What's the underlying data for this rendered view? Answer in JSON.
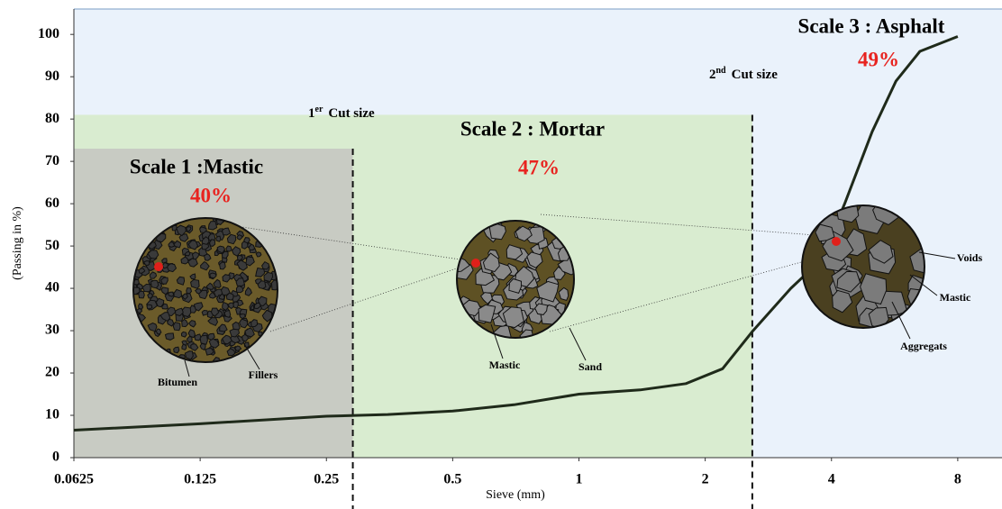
{
  "chart_data": {
    "type": "line",
    "x_label": "Sieve (mm)",
    "y_label": "(Passing in %)",
    "log_x": true,
    "xlim": [
      0.0625,
      10.2
    ],
    "xticks": [
      0.0625,
      0.125,
      0.25,
      0.5,
      1,
      2,
      4,
      8
    ],
    "ylim": [
      0,
      106
    ],
    "yticks": [
      0,
      10,
      20,
      30,
      40,
      50,
      60,
      70,
      80,
      90,
      100
    ],
    "x": [
      0.0625,
      0.125,
      0.25,
      0.35,
      0.5,
      0.7,
      1,
      1.4,
      1.8,
      2.2,
      2.6,
      3.2,
      3.8,
      4.3,
      5,
      5.7,
      6.5,
      8
    ],
    "series": [
      {
        "color": "#1f2a1a",
        "values": [
          6.5,
          8,
          9.8,
          10.2,
          11,
          12.5,
          15,
          16,
          17.5,
          21,
          30,
          40,
          47,
          60,
          77,
          89,
          96,
          99.5
        ]
      }
    ],
    "zones": [
      {
        "name": "Scale 1 :Mastic",
        "label": "40%",
        "xmax": 0.289,
        "ymax": 73,
        "color": "#c8cbc3"
      },
      {
        "name": "Scale 2 : Mortar",
        "label": "47%",
        "xmax": 2.59,
        "ymax": 81,
        "color": "#d9ecd0"
      },
      {
        "name": "Scale 3 : Asphalt",
        "label": "49%"
      }
    ],
    "cut_labels": [
      [
        "1",
        "er",
        "Cut size"
      ],
      [
        "2",
        "nd",
        "Cut size"
      ]
    ],
    "annotations": [
      "Bitumen",
      "Fillers",
      "Mastic",
      "Sand",
      "Voids",
      "Mastic",
      "Aggregats"
    ],
    "background": "#eaf2fb"
  }
}
